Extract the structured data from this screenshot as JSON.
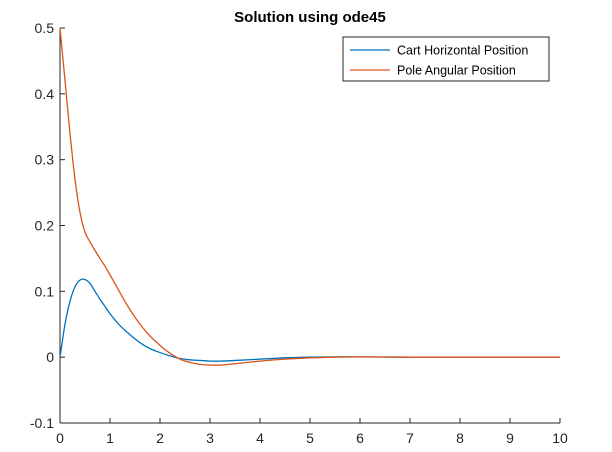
{
  "chart_data": {
    "type": "line",
    "title": "Solution using ode45",
    "xlabel": "",
    "ylabel": "",
    "xlim": [
      0,
      10
    ],
    "ylim": [
      -0.1,
      0.5
    ],
    "x_ticks": [
      0,
      1,
      2,
      3,
      4,
      5,
      6,
      7,
      8,
      9,
      10
    ],
    "y_ticks": [
      -0.1,
      0,
      0.1,
      0.2,
      0.3,
      0.4,
      0.5
    ],
    "x_tick_labels": [
      "0",
      "1",
      "2",
      "3",
      "4",
      "5",
      "6",
      "7",
      "8",
      "9",
      "10"
    ],
    "y_tick_labels": [
      "-0.1",
      "0",
      "0.1",
      "0.2",
      "0.3",
      "0.4",
      "0.5"
    ],
    "grid": false,
    "legend_position": "top-right",
    "series": [
      {
        "name": "Cart Horizontal Position",
        "color": "#0072BD",
        "x": [
          0,
          0.1,
          0.2,
          0.3,
          0.4,
          0.5,
          0.6,
          0.7,
          0.8,
          0.9,
          1.0,
          1.2,
          1.4,
          1.6,
          1.8,
          2.0,
          2.2,
          2.4,
          2.6,
          2.8,
          3.0,
          3.2,
          3.5,
          4.0,
          4.5,
          5.0,
          5.5,
          6.0,
          7.0,
          8.0,
          9.0,
          10.0
        ],
        "y": [
          0,
          0.05,
          0.085,
          0.107,
          0.117,
          0.118,
          0.112,
          0.1,
          0.088,
          0.077,
          0.066,
          0.048,
          0.034,
          0.022,
          0.013,
          0.007,
          0.002,
          -0.002,
          -0.004,
          -0.005,
          -0.006,
          -0.006,
          -0.005,
          -0.003,
          -0.001,
          0.0,
          0.0005,
          0.0005,
          0.0,
          0.0,
          0.0,
          0.0
        ]
      },
      {
        "name": "Pole Angular Position",
        "color": "#D95319",
        "x": [
          0,
          0.1,
          0.2,
          0.3,
          0.4,
          0.5,
          0.6,
          0.7,
          0.8,
          0.9,
          1.0,
          1.2,
          1.4,
          1.6,
          1.8,
          2.0,
          2.2,
          2.4,
          2.6,
          2.8,
          3.0,
          3.2,
          3.5,
          4.0,
          4.5,
          5.0,
          5.5,
          6.0,
          7.0,
          8.0,
          9.0,
          10.0
        ],
        "y": [
          0.5,
          0.42,
          0.34,
          0.27,
          0.22,
          0.19,
          0.175,
          0.162,
          0.15,
          0.138,
          0.125,
          0.098,
          0.072,
          0.05,
          0.032,
          0.018,
          0.006,
          -0.003,
          -0.008,
          -0.011,
          -0.012,
          -0.012,
          -0.01,
          -0.006,
          -0.003,
          -0.001,
          0.0,
          0.0005,
          0.0,
          0.0,
          0.0,
          0.0
        ]
      }
    ]
  }
}
